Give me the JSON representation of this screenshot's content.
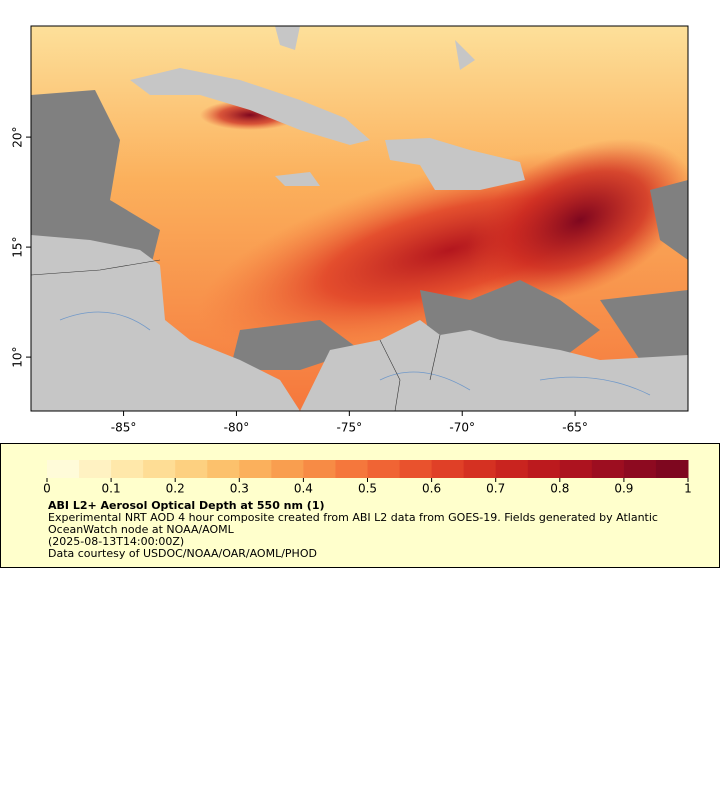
{
  "map": {
    "xlim": [
      -89.1,
      -60
    ],
    "ylim": [
      7.55,
      25.05
    ],
    "xticks": [
      {
        "value": -85,
        "label": "-85°"
      },
      {
        "value": -80,
        "label": "-80°"
      },
      {
        "value": -75,
        "label": "-75°"
      },
      {
        "value": -70,
        "label": "-70°"
      },
      {
        "value": -65,
        "label": "-65°"
      }
    ],
    "yticks": [
      {
        "value": 10,
        "label": "10°"
      },
      {
        "value": 15,
        "label": "15°"
      },
      {
        "value": 20,
        "label": "20°"
      }
    ]
  },
  "colorbar": {
    "lim": [
      0,
      1
    ],
    "ticks": [
      0,
      0.1,
      0.2,
      0.3,
      0.4,
      0.5,
      0.6,
      0.7,
      0.8,
      0.9,
      1
    ],
    "colors": [
      "#fffbd9",
      "#fff2c2",
      "#ffe8aa",
      "#fedd95",
      "#fdd080",
      "#fcc16c",
      "#fbb05c",
      "#f99e4f",
      "#f78b45",
      "#f5773c",
      "#f06434",
      "#e9522d",
      "#e04027",
      "#d53122",
      "#c9241f",
      "#bc1a1e",
      "#ad131f",
      "#9d0e20",
      "#8d0a20",
      "#7e071f"
    ]
  },
  "legend": {
    "title": "ABI L2+ Aerosol Optical Depth at 550 nm (1)",
    "description": "Experimental NRT AOD 4 hour composite created from ABI L2 data from GOES-19. Fields generated by Atlantic OceanWatch node at NOAA/AOML",
    "time": "(2025-08-13T14:00:00Z)",
    "credit": "Data courtesy of USDOC/NOAA/OAR/AOML/PHOD"
  }
}
